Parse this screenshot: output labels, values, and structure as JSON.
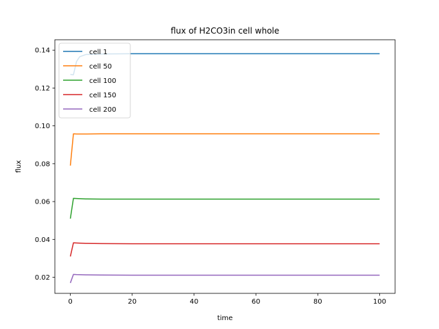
{
  "chart_data": {
    "type": "line",
    "title": "flux of H2CO3in cell whole",
    "xlabel": "time",
    "ylabel": "flux",
    "xlim": [
      -5,
      105
    ],
    "ylim": [
      0.0115,
      0.1455
    ],
    "xticks": [
      0,
      20,
      40,
      60,
      80,
      100
    ],
    "yticks": [
      0.02,
      0.04,
      0.06,
      0.08,
      0.1,
      0.12,
      0.14
    ],
    "ytick_labels": [
      "0.02",
      "0.04",
      "0.06",
      "0.08",
      "0.10",
      "0.12",
      "0.14"
    ],
    "grid": false,
    "legend_position": "top-left",
    "series": [
      {
        "name": "cell 1",
        "color": "#1f77b4",
        "x": [
          0,
          1,
          2,
          3,
          5,
          10,
          20,
          50,
          100
        ],
        "y": [
          0.1272,
          0.127,
          0.134,
          0.1365,
          0.1377,
          0.138,
          0.1381,
          0.1381,
          0.1381
        ]
      },
      {
        "name": "cell 50",
        "color": "#ff7f0e",
        "x": [
          0,
          1,
          2,
          5,
          10,
          20,
          50,
          100
        ],
        "y": [
          0.079,
          0.0958,
          0.0957,
          0.0957,
          0.0958,
          0.0958,
          0.0958,
          0.0958
        ]
      },
      {
        "name": "cell 100",
        "color": "#2ca02c",
        "x": [
          0,
          1,
          2,
          5,
          10,
          20,
          50,
          100
        ],
        "y": [
          0.051,
          0.0617,
          0.0616,
          0.0614,
          0.0613,
          0.0613,
          0.0613,
          0.0613
        ]
      },
      {
        "name": "cell 150",
        "color": "#d62728",
        "x": [
          0,
          1,
          2,
          5,
          10,
          20,
          50,
          100
        ],
        "y": [
          0.031,
          0.0382,
          0.0381,
          0.0379,
          0.0378,
          0.0377,
          0.0377,
          0.0377
        ]
      },
      {
        "name": "cell 200",
        "color": "#9467bd",
        "x": [
          0,
          1,
          2,
          5,
          10,
          20,
          50,
          100
        ],
        "y": [
          0.017,
          0.0215,
          0.0214,
          0.0213,
          0.0212,
          0.0211,
          0.0211,
          0.0211
        ]
      }
    ]
  }
}
